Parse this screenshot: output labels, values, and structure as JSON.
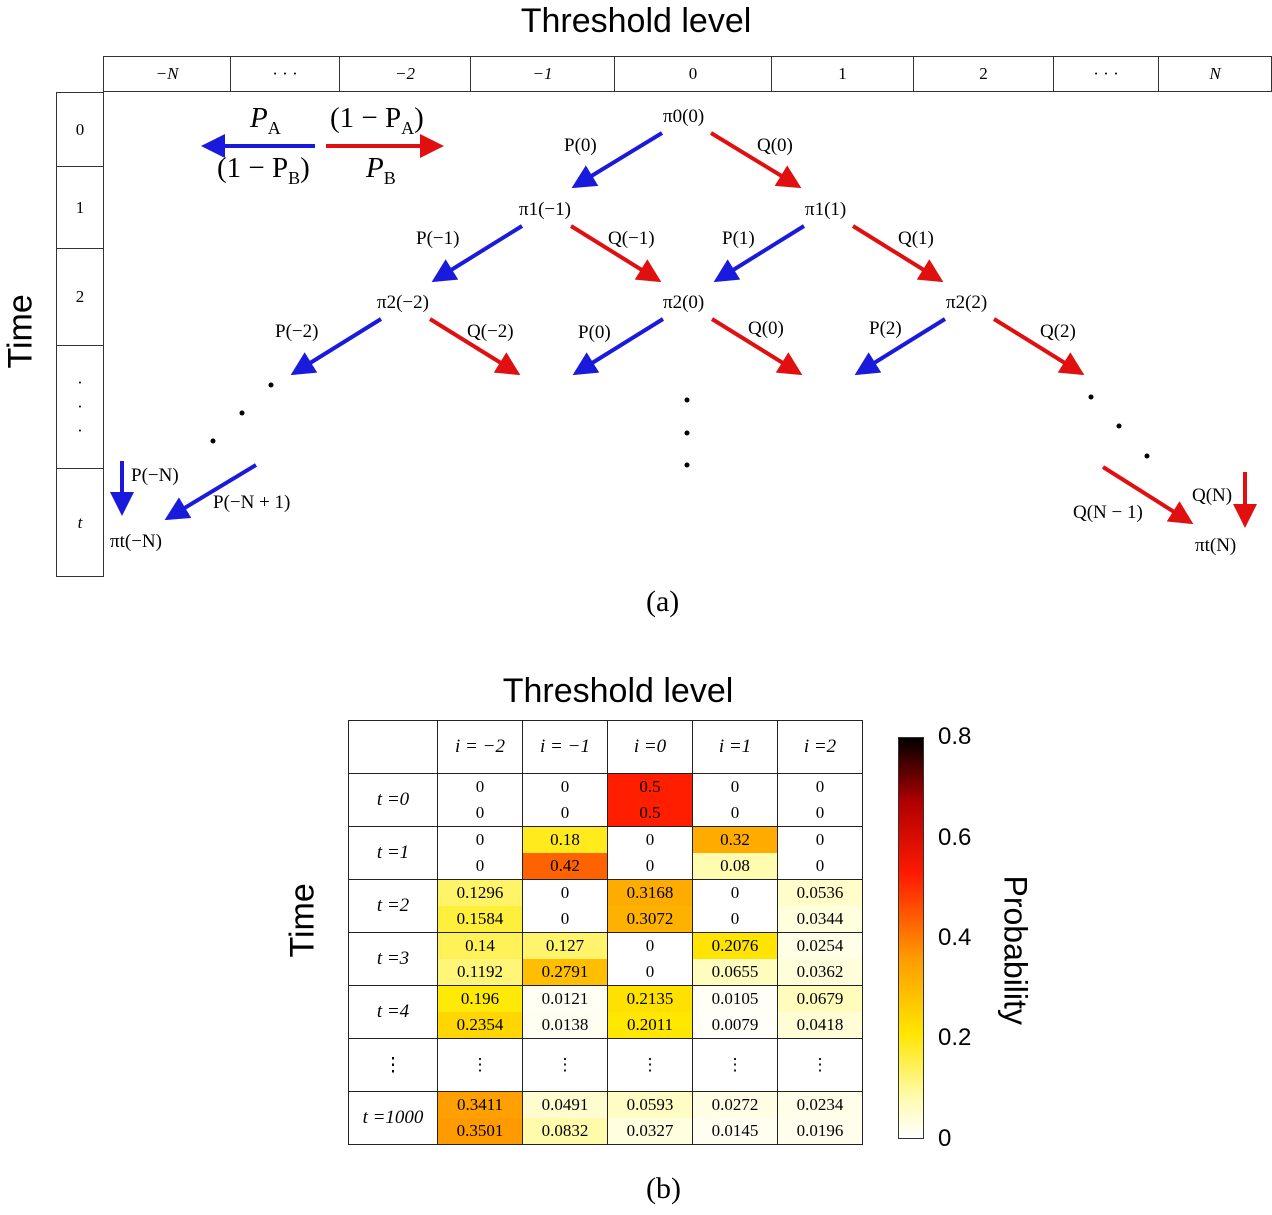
{
  "panel_a": {
    "title": "Threshold level",
    "time_label": "Time",
    "columns": [
      "−N",
      "· · ·",
      "−2",
      "−1",
      "0",
      "1",
      "2",
      "· · ·",
      "N"
    ],
    "rows": [
      "0",
      "1",
      "2",
      "·\n·\n·",
      "t"
    ],
    "legend": {
      "left_top": "P",
      "left_top_sub": "A",
      "left_bottom": "(1 − P",
      "left_bottom_sub": "B",
      "right_top": "(1 − P",
      "right_top_sub": "A",
      "right_bottom": "P",
      "right_bottom_sub": "B"
    },
    "nodes": {
      "n00": "π0(0)",
      "n1m1": "π1(−1)",
      "n11": "π1(1)",
      "n2m2": "π2(−2)",
      "n20": "π2(0)",
      "n22": "π2(2)",
      "ntmN": "πt(−N)",
      "ntN": "πt(N)"
    },
    "arrow_labels": {
      "P0": "P(0)",
      "Q0": "Q(0)",
      "Pm1": "P(−1)",
      "Qm1": "Q(−1)",
      "P1": "P(1)",
      "Q1": "Q(1)",
      "Pm2": "P(−2)",
      "Qm2": "Q(−2)",
      "P0b": "P(0)",
      "Q0b": "Q(0)",
      "P2": "P(2)",
      "Q2": "Q(2)",
      "PmN": "P(−N)",
      "PmN1": "P(−N + 1)",
      "QN1": "Q(N − 1)",
      "QN": "Q(N)"
    },
    "caption": "(a)",
    "colors": {
      "blue": "#1a1adc",
      "red": "#e01010"
    }
  },
  "panel_b": {
    "title": "Threshold level",
    "time_label": "Time",
    "colorbar_label": "Probability",
    "colorbar_ticks": [
      "0.8",
      "0.6",
      "0.4",
      "0.2",
      "0"
    ],
    "caption": "(b)",
    "col_headers": [
      "i = −2",
      "i = −1",
      "i =0",
      "i =1",
      "i =2"
    ],
    "rows": [
      {
        "label": "t =0",
        "cells": [
          [
            "0",
            "0"
          ],
          [
            "0",
            "0"
          ],
          [
            "0.5",
            "0.5"
          ],
          [
            "0",
            "0"
          ],
          [
            "0",
            "0"
          ]
        ]
      },
      {
        "label": "t =1",
        "cells": [
          [
            "0",
            "0"
          ],
          [
            "0.18",
            "0.42"
          ],
          [
            "0",
            "0"
          ],
          [
            "0.32",
            "0.08"
          ],
          [
            "0",
            "0"
          ]
        ]
      },
      {
        "label": "t =2",
        "cells": [
          [
            "0.1296",
            "0.1584"
          ],
          [
            "0",
            "0"
          ],
          [
            "0.3168",
            "0.3072"
          ],
          [
            "0",
            "0"
          ],
          [
            "0.0536",
            "0.0344"
          ]
        ]
      },
      {
        "label": "t =3",
        "cells": [
          [
            "0.14",
            "0.1192"
          ],
          [
            "0.127",
            "0.2791"
          ],
          [
            "0",
            "0"
          ],
          [
            "0.2076",
            "0.0655"
          ],
          [
            "0.0254",
            "0.0362"
          ]
        ]
      },
      {
        "label": "t =4",
        "cells": [
          [
            "0.196",
            "0.2354"
          ],
          [
            "0.0121",
            "0.0138"
          ],
          [
            "0.2135",
            "0.2011"
          ],
          [
            "0.0105",
            "0.0079"
          ],
          [
            "0.0679",
            "0.0418"
          ]
        ]
      },
      {
        "label": "⋮",
        "cells": [
          [
            "⋮"
          ],
          [
            "⋮"
          ],
          [
            "⋮"
          ],
          [
            "⋮"
          ],
          [
            "⋮"
          ]
        ]
      },
      {
        "label": "t =1000",
        "cells": [
          [
            "0.3411",
            "0.3501"
          ],
          [
            "0.0491",
            "0.0832"
          ],
          [
            "0.0593",
            "0.0327"
          ],
          [
            "0.0272",
            "0.0145"
          ],
          [
            "0.0234",
            "0.0196"
          ]
        ]
      }
    ]
  }
}
